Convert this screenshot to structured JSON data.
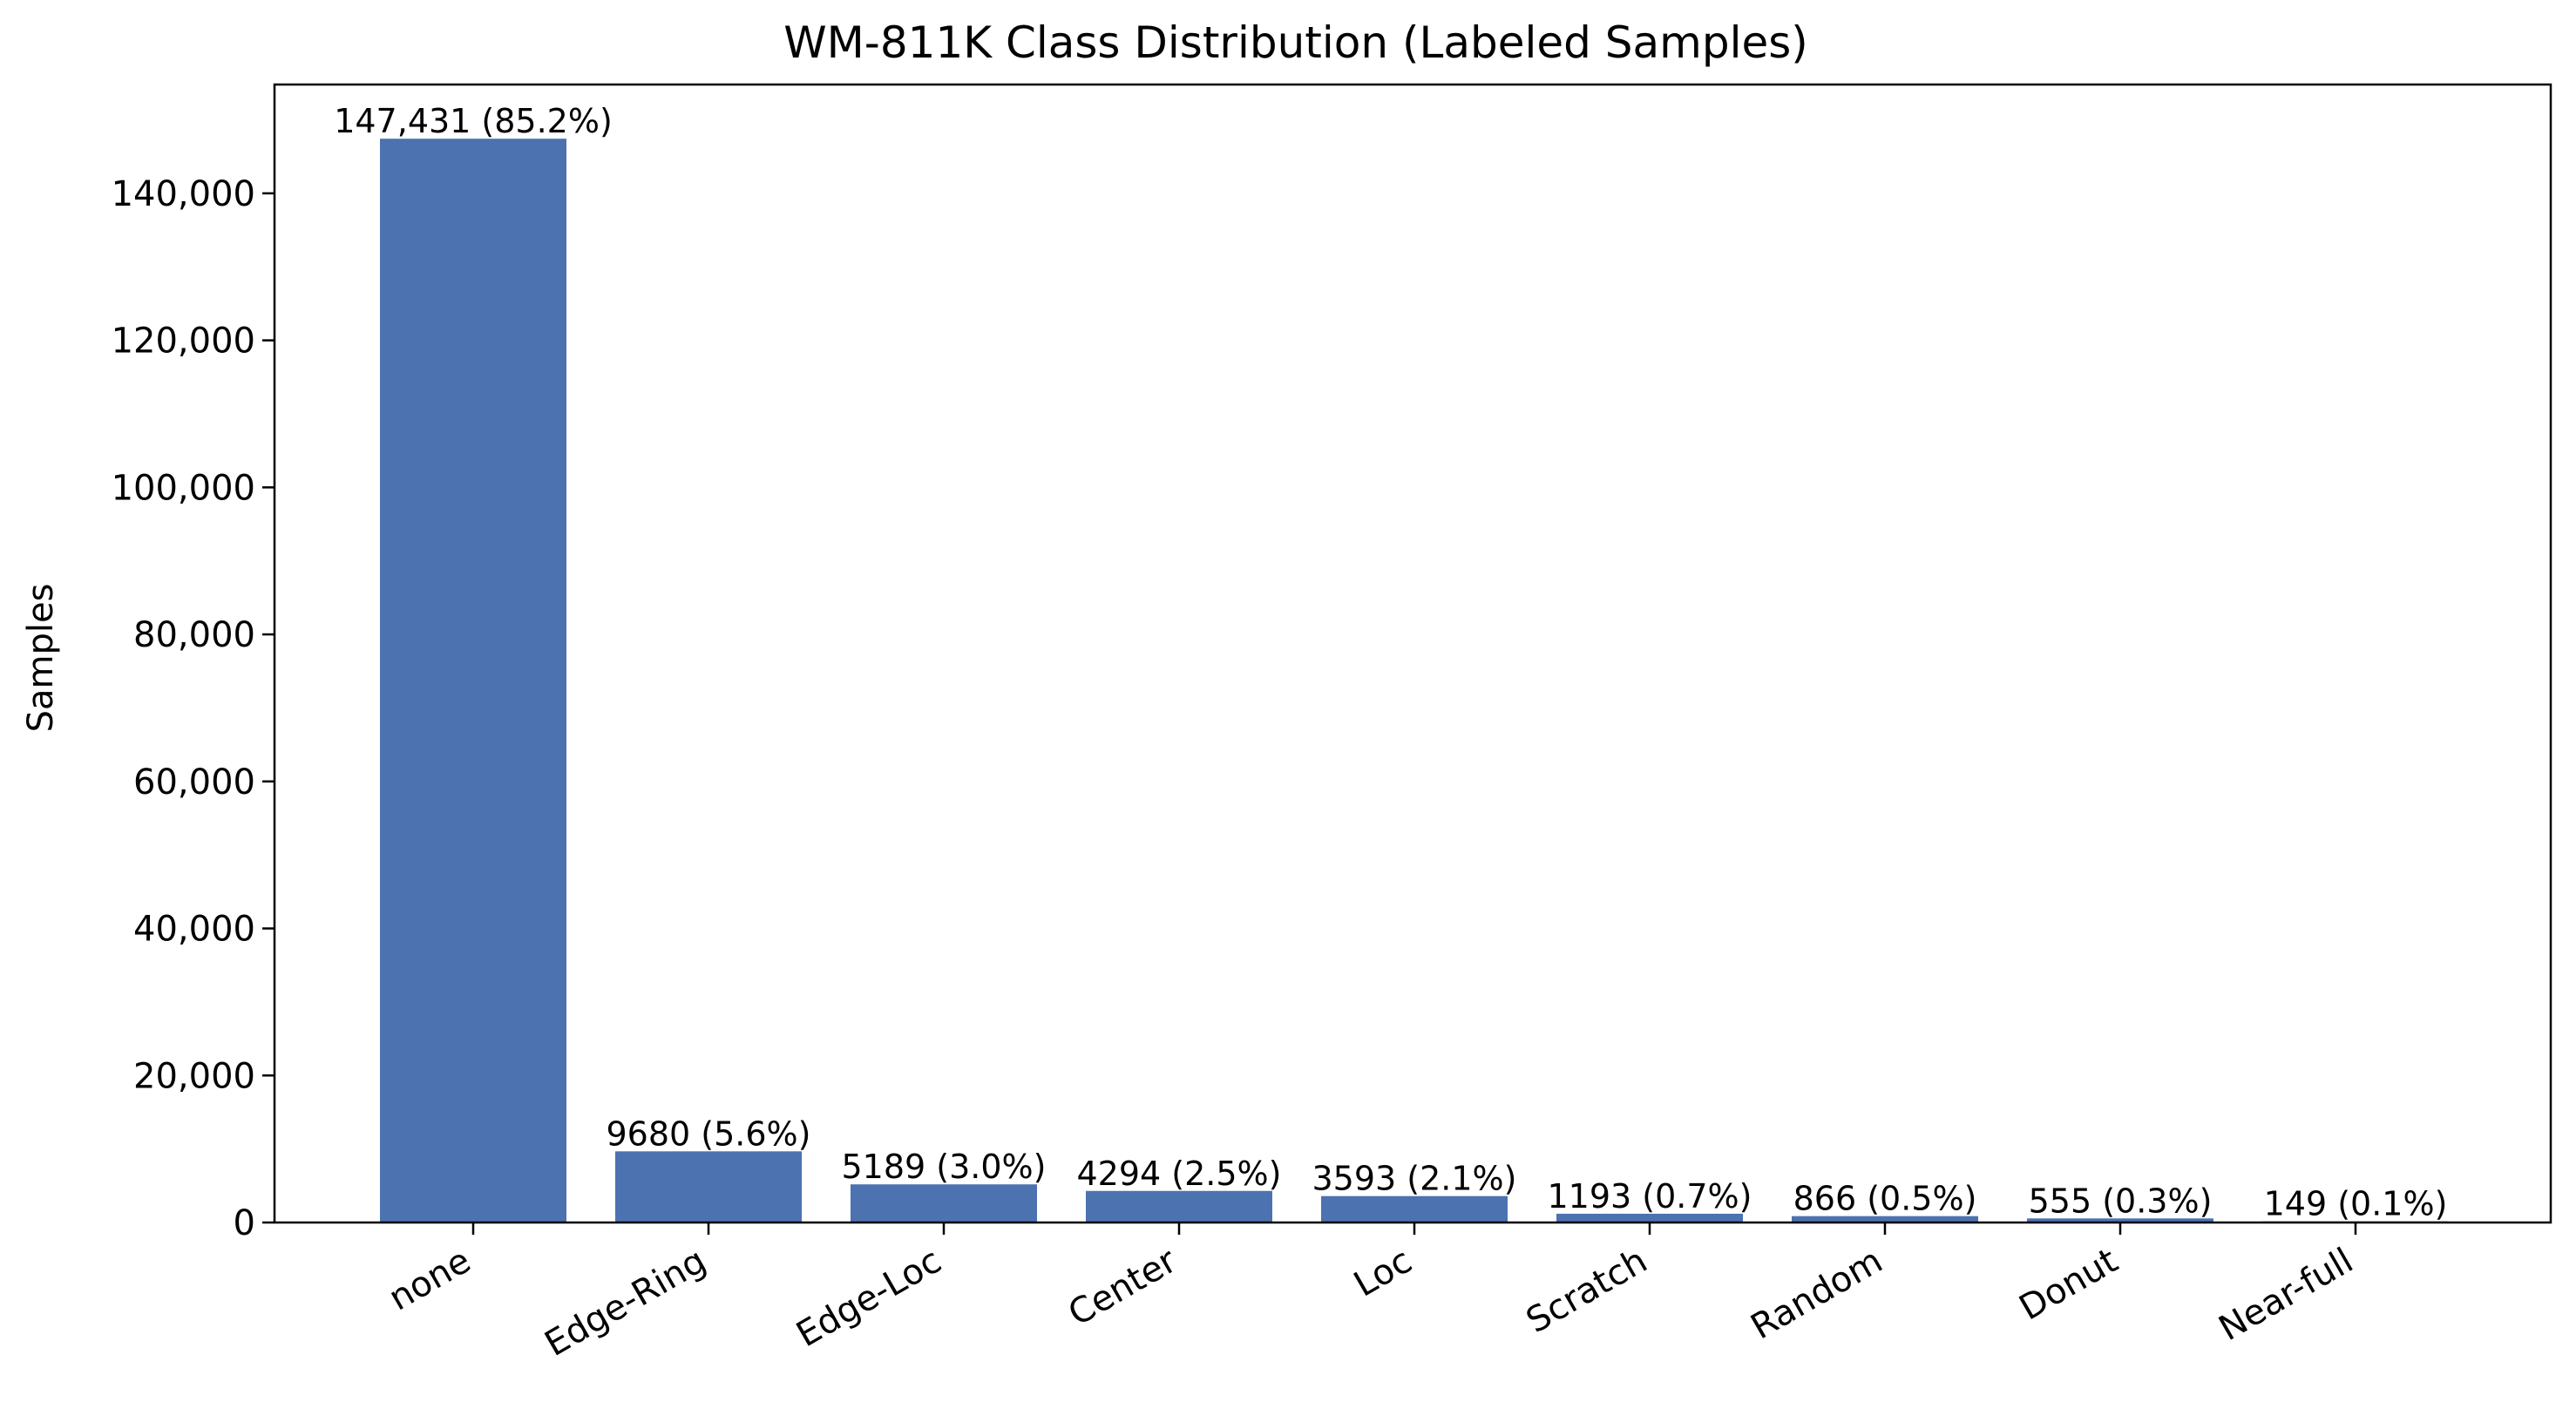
{
  "chart_data": {
    "type": "bar",
    "title": "WM-811K Class Distribution (Labeled Samples)",
    "xlabel": "",
    "ylabel": "Samples",
    "categories": [
      "none",
      "Edge-Ring",
      "Edge-Loc",
      "Center",
      "Loc",
      "Scratch",
      "Random",
      "Donut",
      "Near-full"
    ],
    "values": [
      147431,
      9680,
      5189,
      4294,
      3593,
      1193,
      866,
      555,
      149
    ],
    "bar_labels": [
      "147,431 (85.2%)",
      "9680 (5.6%)",
      "5189 (3.0%)",
      "4294 (2.5%)",
      "3593 (2.1%)",
      "1193 (0.7%)",
      "866 (0.5%)",
      "555 (0.3%)",
      "149 (0.1%)"
    ],
    "yticks": [
      0,
      20000,
      40000,
      60000,
      80000,
      100000,
      120000,
      140000
    ],
    "ytick_labels": [
      "0",
      "20,000",
      "40,000",
      "60,000",
      "80,000",
      "100,000",
      "120,000",
      "140,000"
    ],
    "ylim": [
      0,
      154802
    ],
    "grid": false,
    "bar_color": "#4c72b0",
    "xtick_rotation_deg": -30
  }
}
